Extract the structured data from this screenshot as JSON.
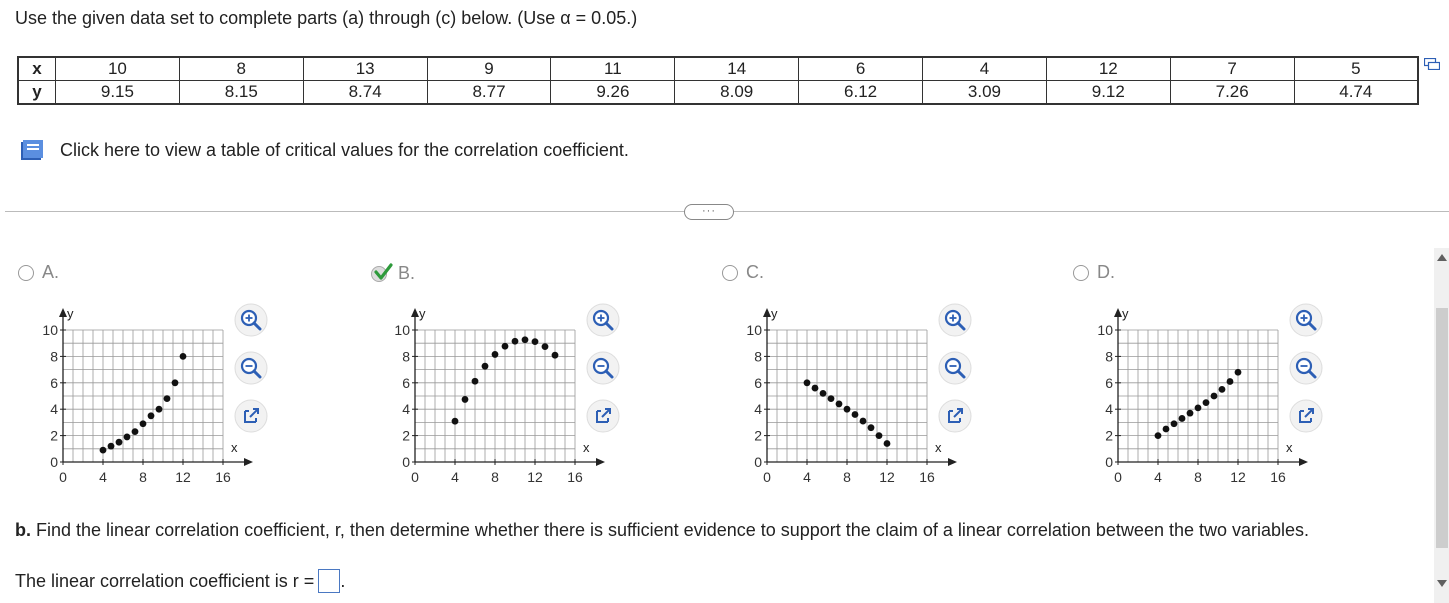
{
  "instructions": "Use the given data set to complete parts (a) through (c) below. (Use α = 0.05.)",
  "data_table": {
    "x_label": "x",
    "y_label": "y",
    "x": [
      "10",
      "8",
      "13",
      "9",
      "11",
      "14",
      "6",
      "4",
      "12",
      "7",
      "5"
    ],
    "y": [
      "9.15",
      "8.15",
      "8.74",
      "8.77",
      "9.26",
      "8.09",
      "6.12",
      "3.09",
      "9.12",
      "7.26",
      "4.74"
    ]
  },
  "critical_values_link": "Click here to view a table of critical values for the correlation coefficient.",
  "expand_dots": "···",
  "options": [
    {
      "letter": "A.",
      "selected": false
    },
    {
      "letter": "B.",
      "selected": true
    },
    {
      "letter": "C.",
      "selected": false
    },
    {
      "letter": "D.",
      "selected": false
    }
  ],
  "graph_axis": {
    "x_letter": "x",
    "y_letter": "y",
    "x_ticks": [
      "0",
      "4",
      "8",
      "12",
      "16"
    ],
    "y_ticks": [
      "0",
      "2",
      "4",
      "6",
      "8",
      "10"
    ]
  },
  "chart_data": [
    {
      "type": "scatter",
      "xlim": [
        0,
        16
      ],
      "ylim": [
        0,
        10
      ],
      "points": [
        [
          4,
          0.9
        ],
        [
          4.8,
          1.2
        ],
        [
          5.6,
          1.5
        ],
        [
          6.4,
          1.9
        ],
        [
          7.2,
          2.3
        ],
        [
          8,
          2.9
        ],
        [
          8.8,
          3.5
        ],
        [
          9.6,
          4.0
        ],
        [
          10.4,
          4.8
        ],
        [
          11.2,
          6.0
        ],
        [
          12.0,
          8.0
        ]
      ]
    },
    {
      "type": "scatter",
      "xlim": [
        0,
        16
      ],
      "ylim": [
        0,
        10
      ],
      "points": [
        [
          4,
          3.09
        ],
        [
          5,
          4.74
        ],
        [
          6,
          6.12
        ],
        [
          7,
          7.26
        ],
        [
          8,
          8.15
        ],
        [
          9,
          8.77
        ],
        [
          10,
          9.15
        ],
        [
          11,
          9.26
        ],
        [
          12,
          9.12
        ],
        [
          13,
          8.74
        ],
        [
          14,
          8.09
        ]
      ]
    },
    {
      "type": "scatter",
      "xlim": [
        0,
        16
      ],
      "ylim": [
        0,
        10
      ],
      "points": [
        [
          4,
          6.0
        ],
        [
          4.8,
          5.6
        ],
        [
          5.6,
          5.2
        ],
        [
          6.4,
          4.8
        ],
        [
          7.2,
          4.4
        ],
        [
          8,
          4.0
        ],
        [
          8.8,
          3.6
        ],
        [
          9.6,
          3.1
        ],
        [
          10.4,
          2.6
        ],
        [
          11.2,
          2.0
        ],
        [
          12.0,
          1.4
        ]
      ]
    },
    {
      "type": "scatter",
      "xlim": [
        0,
        16
      ],
      "ylim": [
        0,
        10
      ],
      "points": [
        [
          4,
          2.0
        ],
        [
          4.8,
          2.5
        ],
        [
          5.6,
          2.9
        ],
        [
          6.4,
          3.3
        ],
        [
          7.2,
          3.7
        ],
        [
          8,
          4.1
        ],
        [
          8.8,
          4.5
        ],
        [
          9.6,
          5.0
        ],
        [
          10.4,
          5.5
        ],
        [
          11.2,
          6.1
        ],
        [
          12.0,
          6.8
        ]
      ]
    }
  ],
  "part_b": {
    "label": "b.",
    "text": " Find the linear correlation coefficient, r, then determine whether there is sufficient evidence to support the claim of a linear correlation between the two variables."
  },
  "answer": {
    "prefix": "The linear correlation coefficient is r =",
    "suffix": "."
  },
  "colors": {
    "accent": "#4a78c2",
    "check": "#2e9a3b",
    "icon_blue": "#2d5fb5"
  }
}
